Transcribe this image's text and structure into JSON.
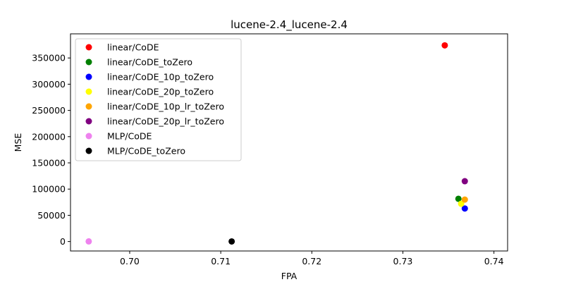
{
  "chart_data": {
    "type": "scatter",
    "title": "lucene-2.4_lucene-2.4",
    "xlabel": "FPA",
    "ylabel": "MSE",
    "xlim": [
      0.6935,
      0.7415
    ],
    "ylim": [
      -18000,
      396000
    ],
    "x_ticks": [
      0.7,
      0.71,
      0.72,
      0.73,
      0.74
    ],
    "x_tick_labels": [
      "0.70",
      "0.71",
      "0.72",
      "0.73",
      "0.74"
    ],
    "y_ticks": [
      0,
      50000,
      100000,
      150000,
      200000,
      250000,
      300000,
      350000
    ],
    "y_tick_labels": [
      "0",
      "50000",
      "100000",
      "150000",
      "200000",
      "250000",
      "300000",
      "350000"
    ],
    "grid": false,
    "legend_position": "upper-left",
    "series": [
      {
        "name": "linear/CoDE",
        "color": "#ff0000",
        "points": [
          {
            "x": 0.7346,
            "y": 374000
          }
        ]
      },
      {
        "name": "linear/CoDE_toZero",
        "color": "#008000",
        "points": [
          {
            "x": 0.7361,
            "y": 81500
          }
        ]
      },
      {
        "name": "linear/CoDE_10p_toZero",
        "color": "#0000ff",
        "points": [
          {
            "x": 0.7368,
            "y": 63000
          }
        ]
      },
      {
        "name": "linear/CoDE_20p_toZero",
        "color": "#ffff00",
        "points": [
          {
            "x": 0.7364,
            "y": 72000
          }
        ]
      },
      {
        "name": "linear/CoDE_10p_lr_toZero",
        "color": "#ffa500",
        "points": [
          {
            "x": 0.7368,
            "y": 80000
          }
        ]
      },
      {
        "name": "linear/CoDE_20p_lr_toZero",
        "color": "#800080",
        "points": [
          {
            "x": 0.7368,
            "y": 115000
          }
        ]
      },
      {
        "name": "MLP/CoDE",
        "color": "#ee82ee",
        "points": [
          {
            "x": 0.6955,
            "y": 300
          }
        ]
      },
      {
        "name": "MLP/CoDE_toZero",
        "color": "#000000",
        "points": [
          {
            "x": 0.7112,
            "y": 200
          }
        ]
      }
    ]
  }
}
